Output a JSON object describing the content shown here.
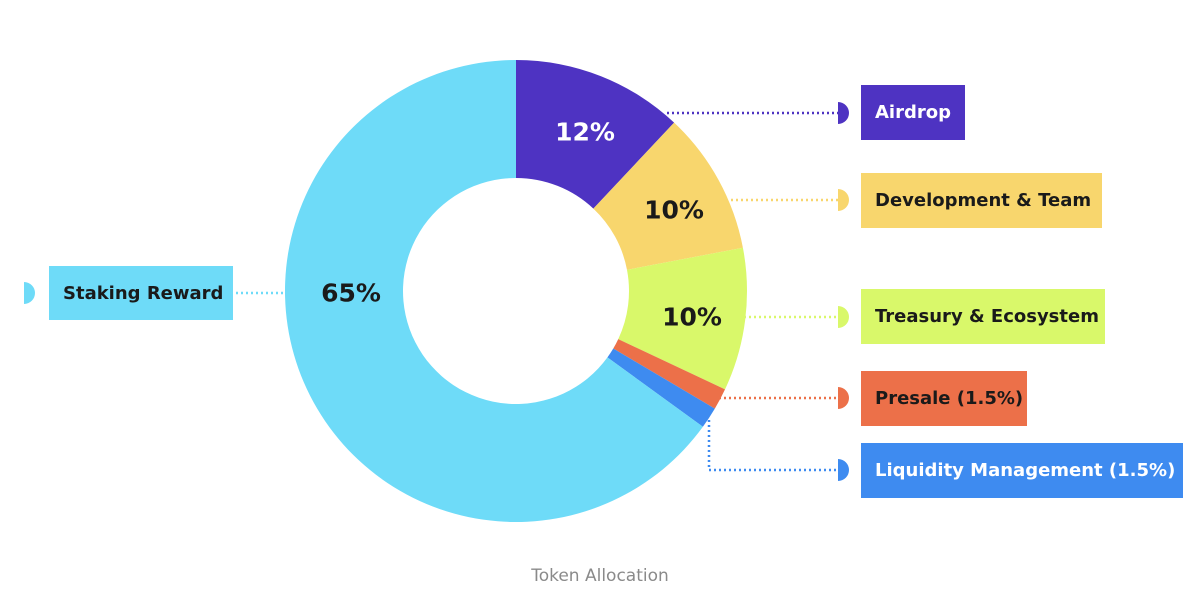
{
  "chart_data": {
    "type": "pie",
    "variant": "donut",
    "categories": [
      "Airdrop",
      "Development & Team",
      "Treasury & Ecosystem",
      "Presale (1.5%)",
      "Liquidity Management (1.5%)",
      "Staking Reward"
    ],
    "values": [
      12,
      10,
      10,
      1.5,
      1.5,
      65
    ],
    "slice_labels": [
      "12%",
      "10%",
      "10%",
      "",
      "",
      "65%"
    ],
    "colors": [
      "#4E33C2",
      "#F8D66D",
      "#D9F86A",
      "#EC7049",
      "#3E8BF0",
      "#6EDBF8"
    ],
    "caption": "Token Allocation",
    "legend_placement": "right and left callouts"
  }
}
